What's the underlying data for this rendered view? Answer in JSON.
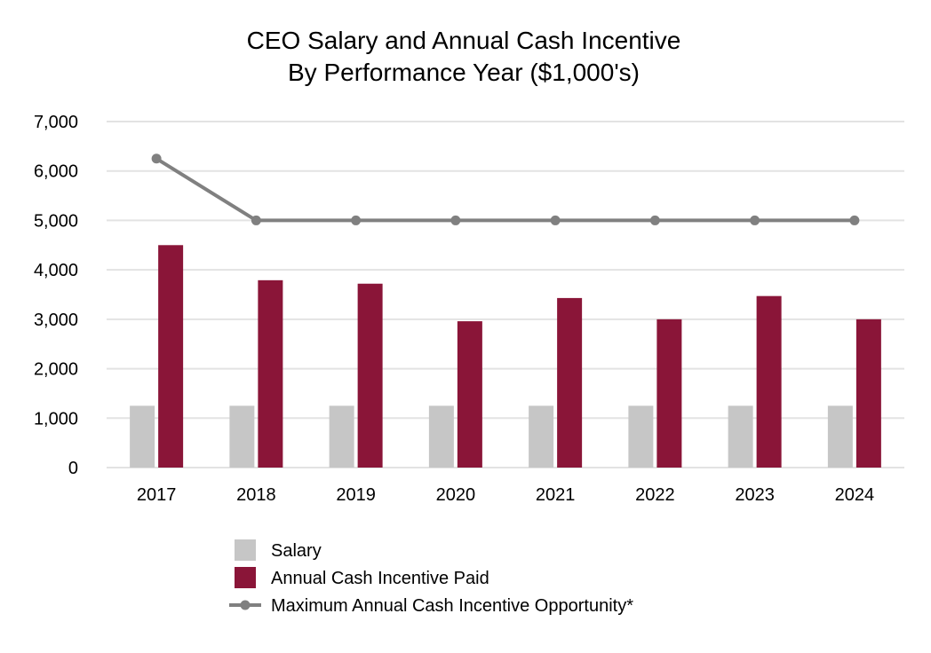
{
  "chart_data": {
    "type": "bar",
    "title": [
      "CEO Salary and Annual Cash Incentive",
      "By Performance Year ($1,000's)"
    ],
    "xlabel": "",
    "ylabel": "",
    "ylim": [
      0,
      7000
    ],
    "yticks": [
      0,
      1000,
      2000,
      3000,
      4000,
      5000,
      6000,
      7000
    ],
    "ytick_labels": [
      "0",
      "1,000",
      "2,000",
      "3,000",
      "4,000",
      "5,000",
      "6,000",
      "7,000"
    ],
    "grid": true,
    "legend_position": "bottom",
    "categories": [
      "2017",
      "2018",
      "2019",
      "2020",
      "2021",
      "2022",
      "2023",
      "2024"
    ],
    "series": [
      {
        "name": "Salary",
        "kind": "bar",
        "color": "#c6c6c6",
        "values": [
          1250,
          1250,
          1250,
          1250,
          1250,
          1250,
          1250,
          1250
        ]
      },
      {
        "name": "Annual Cash Incentive Paid",
        "kind": "bar",
        "color": "#8a1538",
        "values": [
          4500,
          3790,
          3720,
          2960,
          3430,
          3000,
          3470,
          3000
        ]
      },
      {
        "name": "Maximum Annual Cash Incentive Opportunity*",
        "kind": "line",
        "color": "#808080",
        "values": [
          6250,
          5000,
          5000,
          5000,
          5000,
          5000,
          5000,
          5000
        ]
      }
    ]
  }
}
